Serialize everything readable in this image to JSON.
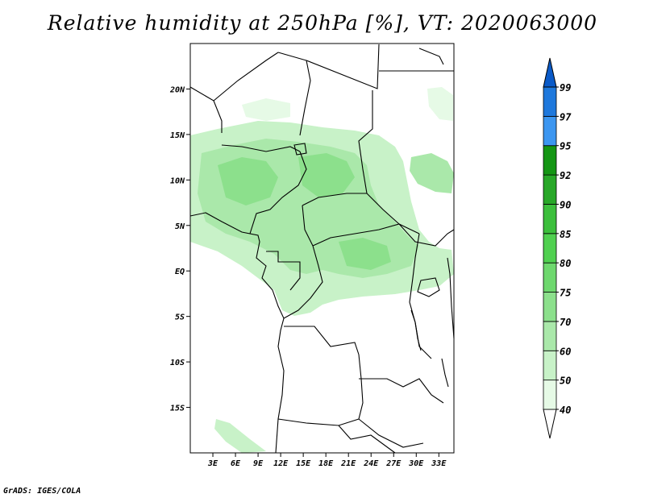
{
  "title": "Relative humidity at 250hPa [%], VT: 2020063000",
  "credit": "GrADS: IGES/COLA",
  "map": {
    "lon_range": [
      0,
      35
    ],
    "lat_range": [
      -20,
      25
    ],
    "lat_ticks": [
      {
        "v": 20,
        "label": "20N"
      },
      {
        "v": 15,
        "label": "15N"
      },
      {
        "v": 10,
        "label": "10N"
      },
      {
        "v": 5,
        "label": "5N"
      },
      {
        "v": 0,
        "label": "EQ"
      },
      {
        "v": -5,
        "label": "5S"
      },
      {
        "v": -10,
        "label": "10S"
      },
      {
        "v": -15,
        "label": "15S"
      }
    ],
    "lon_ticks": [
      {
        "v": 3,
        "label": "3E"
      },
      {
        "v": 6,
        "label": "6E"
      },
      {
        "v": 9,
        "label": "9E"
      },
      {
        "v": 12,
        "label": "12E"
      },
      {
        "v": 15,
        "label": "15E"
      },
      {
        "v": 18,
        "label": "18E"
      },
      {
        "v": 21,
        "label": "21E"
      },
      {
        "v": 24,
        "label": "24E"
      },
      {
        "v": 27,
        "label": "27E"
      },
      {
        "v": 30,
        "label": "30E"
      },
      {
        "v": 33,
        "label": "33E"
      }
    ]
  },
  "colorbar": {
    "levels": [
      "40",
      "50",
      "60",
      "70",
      "75",
      "80",
      "85",
      "90",
      "92",
      "95",
      "97",
      "99"
    ],
    "colors": [
      "#e6fae6",
      "#c8f2c8",
      "#aae8aa",
      "#8ce08c",
      "#6ed86e",
      "#50d050",
      "#3cbf3c",
      "#28a828",
      "#149614",
      "#3c96f0",
      "#1e78dc",
      "#0a5ac8"
    ],
    "below_color": "#ffffff"
  }
}
